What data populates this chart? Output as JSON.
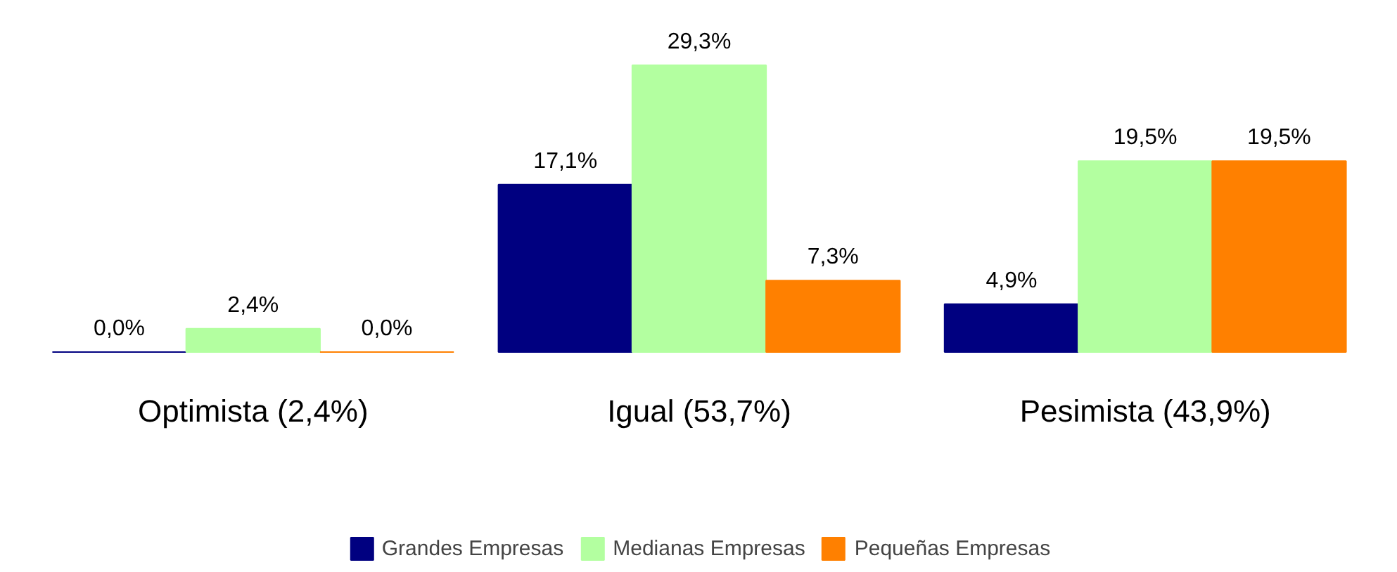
{
  "chart_data": {
    "type": "bar",
    "categories": [
      "Optimista (2,4%)",
      "Igual (53,7%)",
      "Pesimista (43,9%)"
    ],
    "series": [
      {
        "name": "Grandes Empresas",
        "color": "#000080",
        "values": [
          0.0,
          17.1,
          4.9
        ],
        "value_labels": [
          "0,0%",
          "17,1%",
          "4,9%"
        ]
      },
      {
        "name": "Medianas Empresas",
        "color": "#b3ffa0",
        "values": [
          2.4,
          29.3,
          19.5
        ],
        "value_labels": [
          "2,4%",
          "29,3%",
          "19,5%"
        ]
      },
      {
        "name": "Pequeñas Empresas",
        "color": "#ff8000",
        "values": [
          0.0,
          7.3,
          19.5
        ],
        "value_labels": [
          "0,0%",
          "7,3%",
          "19,5%"
        ]
      }
    ],
    "legend": "bottom",
    "grid": false
  }
}
